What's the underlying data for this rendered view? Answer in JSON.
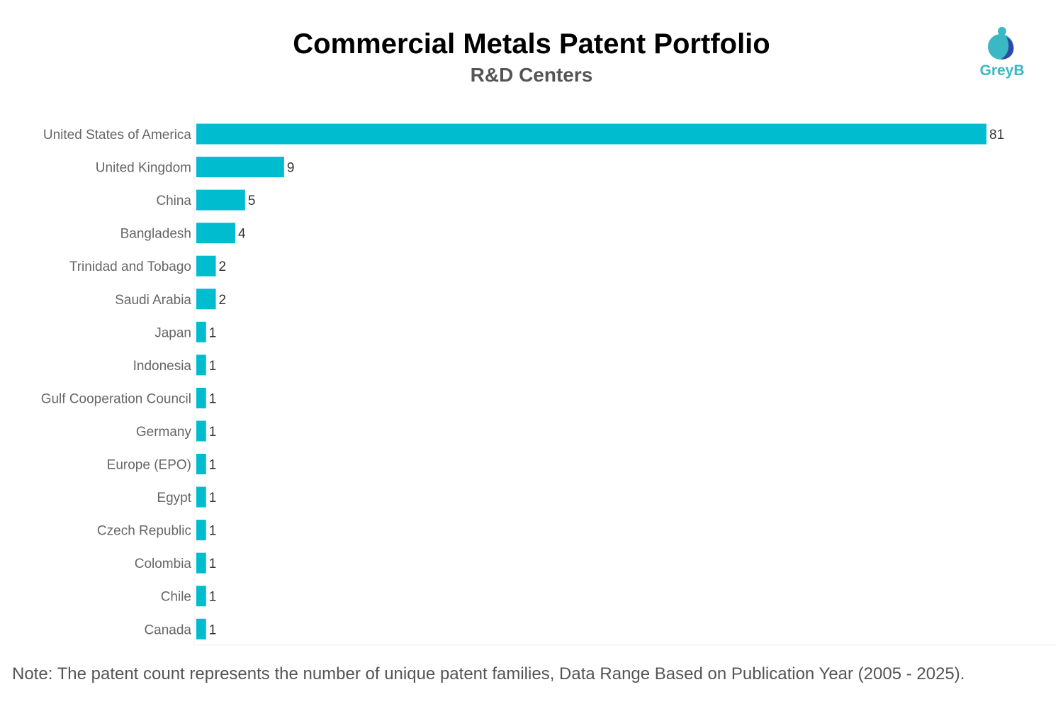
{
  "title": "Commercial Metals Patent Portfolio",
  "subtitle": "R&D Centers",
  "logo_text": "GreyB",
  "note": "Note: The patent count represents the number of unique patent families, Data Range Based on Publication Year (2005 - 2025).",
  "colors": {
    "bar": "#00bccf",
    "label": "#666666",
    "value": "#333333",
    "logo_light": "#3bb8c4",
    "logo_dark": "#2d4aa6"
  },
  "chart_data": {
    "type": "bar",
    "orientation": "horizontal",
    "categories": [
      "United States of America",
      "United Kingdom",
      "China",
      "Bangladesh",
      "Trinidad and Tobago",
      "Saudi Arabia",
      "Japan",
      "Indonesia",
      "Gulf Cooperation Council",
      "Germany",
      "Europe (EPO)",
      "Egypt",
      "Czech Republic",
      "Colombia",
      "Chile",
      "Canada"
    ],
    "values": [
      81,
      9,
      5,
      4,
      2,
      2,
      1,
      1,
      1,
      1,
      1,
      1,
      1,
      1,
      1,
      1
    ],
    "data_labels": true,
    "grid": false
  }
}
